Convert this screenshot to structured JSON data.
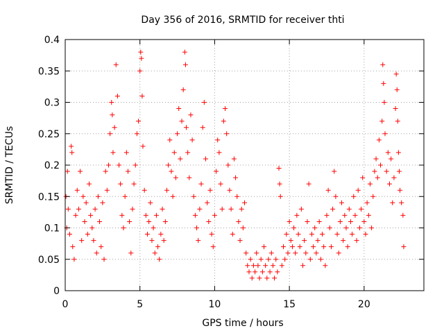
{
  "chart_data": {
    "type": "scatter",
    "title": "Day 356 of 2016, SRMTID for receiver thti",
    "xlabel": "GPS time / hours",
    "ylabel": "SRMTID / TECUs",
    "xlim": [
      0,
      24
    ],
    "ylim": [
      0,
      0.4
    ],
    "xticks": [
      0,
      5,
      10,
      15,
      20
    ],
    "xtick_labels": [
      "0",
      "5",
      "10",
      "15",
      "20"
    ],
    "yticks": [
      0,
      0.05,
      0.1,
      0.15,
      0.2,
      0.25,
      0.3,
      0.35,
      0.4
    ],
    "ytick_labels": [
      "0",
      "0.05",
      "0.1",
      "0.15",
      "0.2",
      "0.25",
      "0.3",
      "0.35",
      "0.4"
    ],
    "grid": true,
    "marker": "plus",
    "color": "#ff0000",
    "series": [
      {
        "name": "SRMTID",
        "points": [
          [
            0.05,
            0.15
          ],
          [
            0.1,
            0.1
          ],
          [
            0.15,
            0.19
          ],
          [
            0.2,
            0.13
          ],
          [
            0.3,
            0.09
          ],
          [
            0.4,
            0.23
          ],
          [
            0.45,
            0.22
          ],
          [
            0.5,
            0.07
          ],
          [
            0.6,
            0.05
          ],
          [
            0.7,
            0.12
          ],
          [
            0.8,
            0.16
          ],
          [
            0.9,
            0.13
          ],
          [
            1.0,
            0.19
          ],
          [
            1.1,
            0.08
          ],
          [
            1.2,
            0.15
          ],
          [
            1.3,
            0.11
          ],
          [
            1.4,
            0.14
          ],
          [
            1.5,
            0.09
          ],
          [
            1.6,
            0.17
          ],
          [
            1.7,
            0.12
          ],
          [
            1.8,
            0.1
          ],
          [
            1.9,
            0.08
          ],
          [
            2.0,
            0.13
          ],
          [
            2.1,
            0.06
          ],
          [
            2.2,
            0.15
          ],
          [
            2.3,
            0.11
          ],
          [
            2.4,
            0.07
          ],
          [
            2.5,
            0.14
          ],
          [
            2.6,
            0.05
          ],
          [
            2.7,
            0.19
          ],
          [
            2.8,
            0.16
          ],
          [
            2.9,
            0.2
          ],
          [
            3.0,
            0.25
          ],
          [
            3.1,
            0.3
          ],
          [
            3.15,
            0.28
          ],
          [
            3.2,
            0.22
          ],
          [
            3.3,
            0.26
          ],
          [
            3.4,
            0.36
          ],
          [
            3.5,
            0.31
          ],
          [
            3.6,
            0.2
          ],
          [
            3.7,
            0.17
          ],
          [
            3.8,
            0.12
          ],
          [
            3.9,
            0.1
          ],
          [
            4.0,
            0.15
          ],
          [
            4.1,
            0.22
          ],
          [
            4.2,
            0.19
          ],
          [
            4.3,
            0.11
          ],
          [
            4.4,
            0.06
          ],
          [
            4.5,
            0.13
          ],
          [
            4.6,
            0.17
          ],
          [
            4.7,
            0.2
          ],
          [
            4.8,
            0.25
          ],
          [
            4.9,
            0.27
          ],
          [
            5.0,
            0.35
          ],
          [
            5.05,
            0.38
          ],
          [
            5.1,
            0.37
          ],
          [
            5.15,
            0.31
          ],
          [
            5.2,
            0.23
          ],
          [
            5.3,
            0.16
          ],
          [
            5.4,
            0.12
          ],
          [
            5.5,
            0.09
          ],
          [
            5.6,
            0.11
          ],
          [
            5.7,
            0.14
          ],
          [
            5.8,
            0.08
          ],
          [
            5.9,
            0.1
          ],
          [
            6.0,
            0.06
          ],
          [
            6.1,
            0.12
          ],
          [
            6.2,
            0.07
          ],
          [
            6.3,
            0.05
          ],
          [
            6.4,
            0.09
          ],
          [
            6.5,
            0.13
          ],
          [
            6.6,
            0.08
          ],
          [
            6.7,
            0.11
          ],
          [
            6.8,
            0.16
          ],
          [
            6.9,
            0.2
          ],
          [
            7.0,
            0.24
          ],
          [
            7.1,
            0.19
          ],
          [
            7.2,
            0.15
          ],
          [
            7.3,
            0.22
          ],
          [
            7.4,
            0.18
          ],
          [
            7.5,
            0.25
          ],
          [
            7.6,
            0.29
          ],
          [
            7.7,
            0.21
          ],
          [
            7.8,
            0.27
          ],
          [
            7.9,
            0.32
          ],
          [
            8.0,
            0.38
          ],
          [
            8.05,
            0.36
          ],
          [
            8.1,
            0.26
          ],
          [
            8.2,
            0.22
          ],
          [
            8.3,
            0.18
          ],
          [
            8.4,
            0.28
          ],
          [
            8.5,
            0.24
          ],
          [
            8.6,
            0.15
          ],
          [
            8.7,
            0.12
          ],
          [
            8.8,
            0.1
          ],
          [
            8.9,
            0.08
          ],
          [
            9.0,
            0.13
          ],
          [
            9.1,
            0.17
          ],
          [
            9.2,
            0.26
          ],
          [
            9.3,
            0.3
          ],
          [
            9.4,
            0.21
          ],
          [
            9.5,
            0.14
          ],
          [
            9.6,
            0.11
          ],
          [
            9.7,
            0.16
          ],
          [
            9.8,
            0.09
          ],
          [
            9.9,
            0.07
          ],
          [
            10.0,
            0.12
          ],
          [
            10.1,
            0.19
          ],
          [
            10.2,
            0.24
          ],
          [
            10.3,
            0.22
          ],
          [
            10.4,
            0.17
          ],
          [
            10.5,
            0.13
          ],
          [
            10.6,
            0.27
          ],
          [
            10.7,
            0.29
          ],
          [
            10.8,
            0.25
          ],
          [
            10.9,
            0.2
          ],
          [
            11.0,
            0.16
          ],
          [
            11.1,
            0.13
          ],
          [
            11.2,
            0.09
          ],
          [
            11.3,
            0.21
          ],
          [
            11.4,
            0.18
          ],
          [
            11.5,
            0.15
          ],
          [
            11.6,
            0.11
          ],
          [
            11.7,
            0.08
          ],
          [
            11.8,
            0.13
          ],
          [
            11.9,
            0.1
          ],
          [
            12.0,
            0.14
          ],
          [
            12.1,
            0.06
          ],
          [
            12.2,
            0.04
          ],
          [
            12.3,
            0.03
          ],
          [
            12.4,
            0.05
          ],
          [
            12.5,
            0.02
          ],
          [
            12.6,
            0.04
          ],
          [
            12.7,
            0.03
          ],
          [
            12.8,
            0.06
          ],
          [
            12.9,
            0.04
          ],
          [
            13.0,
            0.02
          ],
          [
            13.1,
            0.05
          ],
          [
            13.2,
            0.03
          ],
          [
            13.3,
            0.07
          ],
          [
            13.4,
            0.04
          ],
          [
            13.5,
            0.02
          ],
          [
            13.6,
            0.05
          ],
          [
            13.7,
            0.03
          ],
          [
            13.8,
            0.06
          ],
          [
            13.9,
            0.04
          ],
          [
            14.0,
            0.02
          ],
          [
            14.1,
            0.05
          ],
          [
            14.2,
            0.03
          ],
          [
            14.3,
            0.195
          ],
          [
            14.35,
            0.17
          ],
          [
            14.4,
            0.15
          ],
          [
            14.5,
            0.04
          ],
          [
            14.6,
            0.07
          ],
          [
            14.7,
            0.05
          ],
          [
            14.8,
            0.09
          ],
          [
            14.9,
            0.06
          ],
          [
            15.0,
            0.11
          ],
          [
            15.1,
            0.08
          ],
          [
            15.2,
            0.07
          ],
          [
            15.3,
            0.1
          ],
          [
            15.4,
            0.06
          ],
          [
            15.5,
            0.12
          ],
          [
            15.6,
            0.09
          ],
          [
            15.7,
            0.07
          ],
          [
            15.8,
            0.13
          ],
          [
            15.9,
            0.04
          ],
          [
            16.0,
            0.08
          ],
          [
            16.1,
            0.06
          ],
          [
            16.2,
            0.11
          ],
          [
            16.3,
            0.17
          ],
          [
            16.4,
            0.05
          ],
          [
            16.5,
            0.09
          ],
          [
            16.6,
            0.07
          ],
          [
            16.7,
            0.1
          ],
          [
            16.8,
            0.06
          ],
          [
            16.9,
            0.08
          ],
          [
            17.0,
            0.11
          ],
          [
            17.1,
            0.05
          ],
          [
            17.2,
            0.09
          ],
          [
            17.3,
            0.07
          ],
          [
            17.4,
            0.04
          ],
          [
            17.5,
            0.12
          ],
          [
            17.6,
            0.16
          ],
          [
            17.7,
            0.1
          ],
          [
            17.8,
            0.07
          ],
          [
            17.9,
            0.13
          ],
          [
            18.0,
            0.19
          ],
          [
            18.1,
            0.15
          ],
          [
            18.2,
            0.09
          ],
          [
            18.3,
            0.06
          ],
          [
            18.4,
            0.11
          ],
          [
            18.5,
            0.14
          ],
          [
            18.6,
            0.08
          ],
          [
            18.7,
            0.12
          ],
          [
            18.8,
            0.1
          ],
          [
            18.9,
            0.07
          ],
          [
            19.0,
            0.13
          ],
          [
            19.1,
            0.11
          ],
          [
            19.2,
            0.09
          ],
          [
            19.3,
            0.15
          ],
          [
            19.4,
            0.12
          ],
          [
            19.5,
            0.08
          ],
          [
            19.6,
            0.16
          ],
          [
            19.7,
            0.1
          ],
          [
            19.8,
            0.13
          ],
          [
            19.9,
            0.18
          ],
          [
            20.0,
            0.11
          ],
          [
            20.1,
            0.09
          ],
          [
            20.2,
            0.14
          ],
          [
            20.3,
            0.12
          ],
          [
            20.4,
            0.17
          ],
          [
            20.5,
            0.1
          ],
          [
            20.6,
            0.15
          ],
          [
            20.7,
            0.19
          ],
          [
            20.8,
            0.21
          ],
          [
            20.9,
            0.18
          ],
          [
            21.0,
            0.24
          ],
          [
            21.1,
            0.2
          ],
          [
            21.2,
            0.27
          ],
          [
            21.25,
            0.36
          ],
          [
            21.3,
            0.33
          ],
          [
            21.35,
            0.3
          ],
          [
            21.4,
            0.25
          ],
          [
            21.5,
            0.19
          ],
          [
            21.6,
            0.22
          ],
          [
            21.7,
            0.17
          ],
          [
            21.8,
            0.21
          ],
          [
            21.9,
            0.14
          ],
          [
            22.0,
            0.18
          ],
          [
            22.1,
            0.29
          ],
          [
            22.15,
            0.345
          ],
          [
            22.2,
            0.32
          ],
          [
            22.25,
            0.27
          ],
          [
            22.3,
            0.22
          ],
          [
            22.35,
            0.19
          ],
          [
            22.4,
            0.16
          ],
          [
            22.5,
            0.14
          ],
          [
            22.6,
            0.12
          ],
          [
            22.65,
            0.07
          ]
        ]
      }
    ]
  }
}
